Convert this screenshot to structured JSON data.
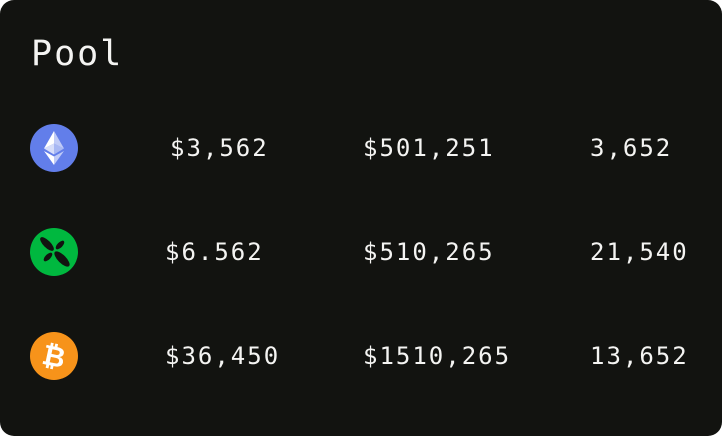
{
  "title": "Pool",
  "rows": [
    {
      "icon": "ethereum-icon",
      "color": "#627EEA",
      "price": "$3,562",
      "liquidity": "$501,251",
      "count": "3,652"
    },
    {
      "icon": "green-coin-icon",
      "color": "#00B83F",
      "price": "$6.562",
      "liquidity": "$510,265",
      "count": "21,540"
    },
    {
      "icon": "bitcoin-icon",
      "color": "#F7931A",
      "price": "$36,450",
      "liquidity": "$1510,265",
      "count": "13,652"
    }
  ]
}
